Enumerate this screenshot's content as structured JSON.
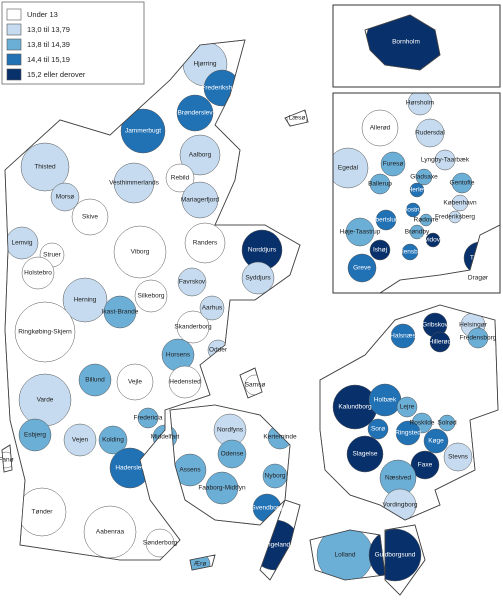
{
  "legend": [
    {
      "label": "Under 13",
      "color": "#ffffff"
    },
    {
      "label": "13,0 til 13,79",
      "color": "#c6dbef"
    },
    {
      "label": "13,8 til 14,39",
      "color": "#6baed6"
    },
    {
      "label": "14,4 til 15,19",
      "color": "#2171b5"
    },
    {
      "label": "15,2 eller derover",
      "color": "#08306b"
    }
  ],
  "municipalities": [
    {
      "name": "Hjørring",
      "color": "#c6dbef"
    },
    {
      "name": "Frederikshavn",
      "color": "#2171b5"
    },
    {
      "name": "Brønderslev",
      "color": "#2171b5"
    },
    {
      "name": "Læsø",
      "color": "#ffffff"
    },
    {
      "name": "Jammerbugt",
      "color": "#2171b5"
    },
    {
      "name": "Aalborg",
      "color": "#c6dbef"
    },
    {
      "name": "Thisted",
      "color": "#c6dbef"
    },
    {
      "name": "Vesthimmerlands",
      "color": "#c6dbef"
    },
    {
      "name": "Rebild",
      "color": "#ffffff"
    },
    {
      "name": "Morsø",
      "color": "#c6dbef"
    },
    {
      "name": "Mariagerfjord",
      "color": "#c6dbef"
    },
    {
      "name": "Skive",
      "color": "#ffffff"
    },
    {
      "name": "Lemvig",
      "color": "#c6dbef"
    },
    {
      "name": "Struer",
      "color": "#ffffff"
    },
    {
      "name": "Viborg",
      "color": "#ffffff"
    },
    {
      "name": "Randers",
      "color": "#ffffff"
    },
    {
      "name": "Norddjurs",
      "color": "#08306b"
    },
    {
      "name": "Holstebro",
      "color": "#ffffff"
    },
    {
      "name": "Favrskov",
      "color": "#c6dbef"
    },
    {
      "name": "Syddjurs",
      "color": "#c6dbef"
    },
    {
      "name": "Herning",
      "color": "#c6dbef"
    },
    {
      "name": "Ikast-Brande",
      "color": "#6baed6"
    },
    {
      "name": "Silkeborg",
      "color": "#ffffff"
    },
    {
      "name": "Skanderborg",
      "color": "#ffffff"
    },
    {
      "name": "Aarhus",
      "color": "#c6dbef"
    },
    {
      "name": "Ringkøbing-Skjern",
      "color": "#ffffff"
    },
    {
      "name": "Horsens",
      "color": "#6baed6"
    },
    {
      "name": "Odder",
      "color": "#c6dbef"
    },
    {
      "name": "Billund",
      "color": "#6baed6"
    },
    {
      "name": "Vejle",
      "color": "#ffffff"
    },
    {
      "name": "Hedensted",
      "color": "#ffffff"
    },
    {
      "name": "Samsø",
      "color": "#ffffff"
    },
    {
      "name": "Varde",
      "color": "#c6dbef"
    },
    {
      "name": "Fredericia",
      "color": "#6baed6"
    },
    {
      "name": "Nordfyns",
      "color": "#c6dbef"
    },
    {
      "name": "Kerteminde",
      "color": "#6baed6"
    },
    {
      "name": "Esbjerg",
      "color": "#6baed6"
    },
    {
      "name": "Vejen",
      "color": "#c6dbef"
    },
    {
      "name": "Kolding",
      "color": "#6baed6"
    },
    {
      "name": "Middelfart",
      "color": "#6baed6"
    },
    {
      "name": "Odense",
      "color": "#6baed6"
    },
    {
      "name": "Fanø",
      "color": "#ffffff"
    },
    {
      "name": "Assens",
      "color": "#6baed6"
    },
    {
      "name": "Haderslev",
      "color": "#2171b5"
    },
    {
      "name": "Nyborg",
      "color": "#6baed6"
    },
    {
      "name": "Faaborg-Midtfyn",
      "color": "#6baed6"
    },
    {
      "name": "Svendborg",
      "color": "#2171b5"
    },
    {
      "name": "Tønder",
      "color": "#ffffff"
    },
    {
      "name": "Aabenraa",
      "color": "#ffffff"
    },
    {
      "name": "Sønderborg",
      "color": "#ffffff"
    },
    {
      "name": "Ærø",
      "color": "#6baed6"
    },
    {
      "name": "Langeland",
      "color": "#08306b"
    },
    {
      "name": "Halsnæs",
      "color": "#2171b5"
    },
    {
      "name": "Gribskov",
      "color": "#08306b"
    },
    {
      "name": "Helsingør",
      "color": "#c6dbef"
    },
    {
      "name": "Hillerød",
      "color": "#08306b"
    },
    {
      "name": "Fredensborg",
      "color": "#6baed6"
    },
    {
      "name": "Kalundborg",
      "color": "#08306b"
    },
    {
      "name": "Holbæk",
      "color": "#2171b5"
    },
    {
      "name": "Lejre",
      "color": "#6baed6"
    },
    {
      "name": "Roskilde",
      "color": "#6baed6"
    },
    {
      "name": "Solrød",
      "color": "#6baed6"
    },
    {
      "name": "Sorø",
      "color": "#2171b5"
    },
    {
      "name": "Ringsted",
      "color": "#2171b5"
    },
    {
      "name": "Køge",
      "color": "#2171b5"
    },
    {
      "name": "Slagelse",
      "color": "#08306b"
    },
    {
      "name": "Stevns",
      "color": "#c6dbef"
    },
    {
      "name": "Faxe",
      "color": "#08306b"
    },
    {
      "name": "Næstved",
      "color": "#6baed6"
    },
    {
      "name": "Vordingborg",
      "color": "#c6dbef"
    },
    {
      "name": "Lolland",
      "color": "#6baed6"
    },
    {
      "name": "Guldborgsund",
      "color": "#08306b"
    },
    {
      "name": "Bornholm",
      "color": "#08306b"
    },
    {
      "name": "Hørsholm",
      "color": "#c6dbef"
    },
    {
      "name": "Allerød",
      "color": "#ffffff"
    },
    {
      "name": "Rudersdal",
      "color": "#c6dbef"
    },
    {
      "name": "Egedal",
      "color": "#c6dbef"
    },
    {
      "name": "Furesø",
      "color": "#6baed6"
    },
    {
      "name": "Lyngby-Taarbæk",
      "color": "#c6dbef"
    },
    {
      "name": "Gladsaxe",
      "color": "#6baed6"
    },
    {
      "name": "Ballerup",
      "color": "#6baed6"
    },
    {
      "name": "Gentofte",
      "color": "#6baed6"
    },
    {
      "name": "Herlev",
      "color": "#2171b5"
    },
    {
      "name": "København",
      "color": "#c6dbef"
    },
    {
      "name": "Glostrup",
      "color": "#2171b5"
    },
    {
      "name": "Frederiksberg",
      "color": "#c6dbef"
    },
    {
      "name": "Albertslund",
      "color": "#2171b5"
    },
    {
      "name": "Rødovre",
      "color": "#6baed6"
    },
    {
      "name": "Brøndby",
      "color": "#6baed6"
    },
    {
      "name": "Høje-Taastrup",
      "color": "#6baed6"
    },
    {
      "name": "Hvidovre",
      "color": "#08306b"
    },
    {
      "name": "Ishøj",
      "color": "#08306b"
    },
    {
      "name": "Vallensbæk",
      "color": "#2171b5"
    },
    {
      "name": "Tårnby",
      "color": "#08306b"
    },
    {
      "name": "Greve",
      "color": "#2171b5"
    },
    {
      "name": "Dragør",
      "color": "#ffffff"
    }
  ]
}
